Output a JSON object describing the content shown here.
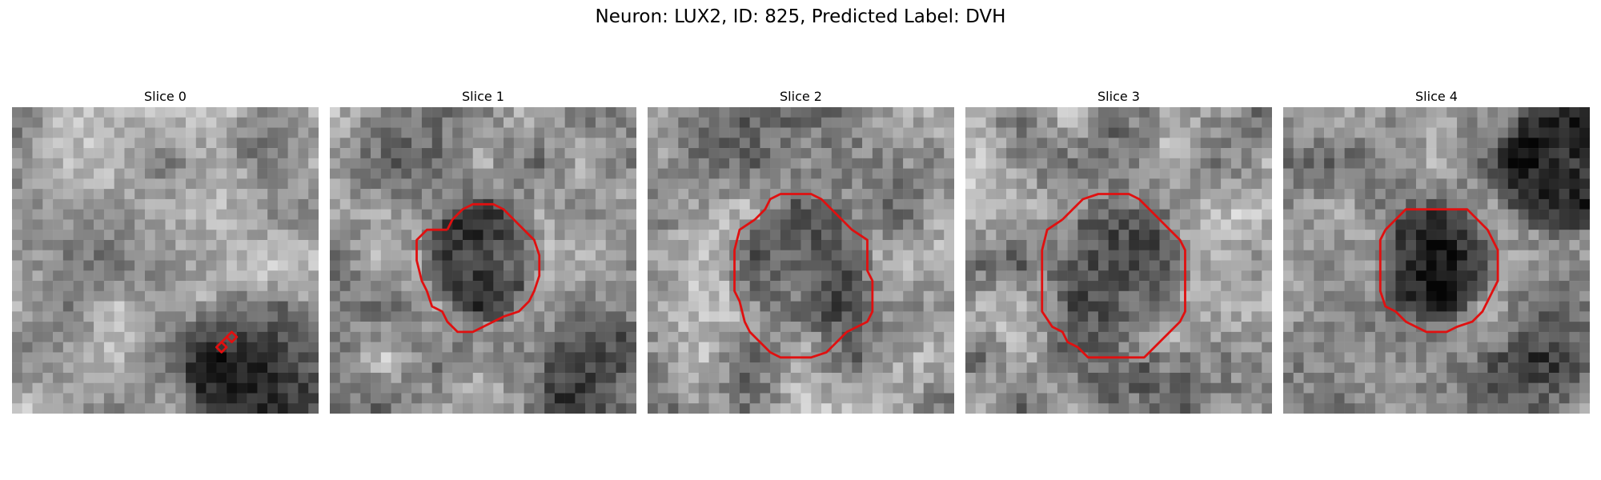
{
  "title": "Neuron: LUX2, ID: 825, Predicted Label: DVH",
  "contour_color": "#e01010",
  "panels": [
    {
      "title": "Slice 0",
      "seed": 11,
      "base": 0.62,
      "contrast": 0.22,
      "dark_regions": [
        {
          "cx": 24,
          "cy": 25,
          "r": 8.5,
          "strength": 0.35
        },
        {
          "cx": 26,
          "cy": 3,
          "r": 5,
          "strength": 0.18
        }
      ],
      "contour": [
        [
          20.0,
          23.5
        ],
        [
          20.5,
          23.0
        ],
        [
          21.0,
          23.5
        ],
        [
          20.5,
          24.0
        ],
        [
          20.0,
          23.5
        ],
        [
          21.0,
          22.5
        ],
        [
          21.5,
          22.0
        ],
        [
          22.0,
          22.5
        ],
        [
          21.5,
          23.0
        ],
        [
          21.0,
          22.5
        ]
      ]
    },
    {
      "title": "Slice 1",
      "seed": 23,
      "base": 0.58,
      "contrast": 0.25,
      "dark_regions": [
        {
          "cx": 15,
          "cy": 15,
          "r": 6.5,
          "strength": 0.3
        },
        {
          "cx": 27,
          "cy": 27,
          "r": 7,
          "strength": 0.22
        }
      ],
      "contour": [
        [
          11.5,
          12.0
        ],
        [
          12.0,
          11.0
        ],
        [
          13.0,
          10.0
        ],
        [
          14.0,
          9.5
        ],
        [
          16.0,
          9.5
        ],
        [
          17.0,
          10.0
        ],
        [
          18.0,
          11.0
        ],
        [
          19.0,
          12.0
        ],
        [
          20.0,
          13.0
        ],
        [
          20.5,
          14.5
        ],
        [
          20.5,
          16.5
        ],
        [
          20.0,
          18.0
        ],
        [
          19.5,
          19.0
        ],
        [
          18.5,
          20.0
        ],
        [
          17.0,
          20.5
        ],
        [
          15.0,
          21.5
        ],
        [
          14.0,
          22.0
        ],
        [
          12.5,
          22.0
        ],
        [
          11.5,
          21.0
        ],
        [
          11.0,
          20.0
        ],
        [
          10.0,
          19.5
        ],
        [
          9.5,
          18.0
        ],
        [
          9.0,
          17.0
        ],
        [
          8.5,
          15.0
        ],
        [
          8.5,
          13.0
        ],
        [
          9.5,
          12.0
        ],
        [
          11.5,
          12.0
        ]
      ]
    },
    {
      "title": "Slice 2",
      "seed": 37,
      "base": 0.55,
      "contrast": 0.26,
      "dark_regions": [
        {
          "cx": 15,
          "cy": 16,
          "r": 7.5,
          "strength": 0.26
        }
      ],
      "contour": [
        [
          10.5,
          11.0
        ],
        [
          11.5,
          10.0
        ],
        [
          12.0,
          9.0
        ],
        [
          13.0,
          8.5
        ],
        [
          16.0,
          8.5
        ],
        [
          17.0,
          9.0
        ],
        [
          18.0,
          10.0
        ],
        [
          19.0,
          11.0
        ],
        [
          20.0,
          12.0
        ],
        [
          21.5,
          13.0
        ],
        [
          21.5,
          16.0
        ],
        [
          22.0,
          17.0
        ],
        [
          22.0,
          20.0
        ],
        [
          21.5,
          21.0
        ],
        [
          20.5,
          21.5
        ],
        [
          19.5,
          22.0
        ],
        [
          18.5,
          23.0
        ],
        [
          17.5,
          24.0
        ],
        [
          16.0,
          24.5
        ],
        [
          13.0,
          24.5
        ],
        [
          12.0,
          24.0
        ],
        [
          11.0,
          23.0
        ],
        [
          10.0,
          22.0
        ],
        [
          9.5,
          21.0
        ],
        [
          9.0,
          19.0
        ],
        [
          8.5,
          18.0
        ],
        [
          8.5,
          14.0
        ],
        [
          9.0,
          12.0
        ],
        [
          10.5,
          11.0
        ]
      ]
    },
    {
      "title": "Slice 3",
      "seed": 51,
      "base": 0.57,
      "contrast": 0.27,
      "dark_regions": [
        {
          "cx": 15,
          "cy": 16,
          "r": 7.5,
          "strength": 0.24
        },
        {
          "cx": 20,
          "cy": 27,
          "r": 4,
          "strength": 0.18
        }
      ],
      "contour": [
        [
          9.5,
          11.0
        ],
        [
          10.5,
          10.0
        ],
        [
          11.5,
          9.0
        ],
        [
          13.0,
          8.5
        ],
        [
          16.0,
          8.5
        ],
        [
          17.0,
          9.0
        ],
        [
          18.0,
          10.0
        ],
        [
          19.0,
          11.0
        ],
        [
          20.0,
          12.0
        ],
        [
          21.0,
          13.0
        ],
        [
          21.5,
          14.0
        ],
        [
          21.5,
          20.0
        ],
        [
          21.0,
          21.0
        ],
        [
          20.0,
          22.0
        ],
        [
          19.0,
          23.0
        ],
        [
          18.0,
          24.0
        ],
        [
          17.5,
          24.5
        ],
        [
          12.0,
          24.5
        ],
        [
          11.0,
          23.5
        ],
        [
          10.0,
          23.0
        ],
        [
          9.5,
          22.0
        ],
        [
          8.5,
          21.5
        ],
        [
          7.5,
          20.0
        ],
        [
          7.5,
          14.0
        ],
        [
          8.0,
          12.0
        ],
        [
          9.5,
          11.0
        ]
      ]
    },
    {
      "title": "Slice 4",
      "seed": 64,
      "base": 0.54,
      "contrast": 0.24,
      "dark_regions": [
        {
          "cx": 15,
          "cy": 15,
          "r": 6.5,
          "strength": 0.32
        },
        {
          "cx": 27,
          "cy": 6,
          "r": 7,
          "strength": 0.3
        },
        {
          "cx": 24,
          "cy": 28,
          "r": 6,
          "strength": 0.18
        }
      ],
      "contour": [
        [
          10.0,
          12.0
        ],
        [
          11.0,
          11.0
        ],
        [
          12.0,
          10.0
        ],
        [
          18.0,
          10.0
        ],
        [
          19.0,
          11.0
        ],
        [
          20.0,
          12.0
        ],
        [
          20.5,
          13.0
        ],
        [
          21.0,
          14.0
        ],
        [
          21.0,
          17.0
        ],
        [
          20.5,
          18.0
        ],
        [
          20.0,
          19.0
        ],
        [
          19.5,
          20.0
        ],
        [
          18.5,
          21.0
        ],
        [
          17.0,
          21.5
        ],
        [
          16.0,
          22.0
        ],
        [
          14.0,
          22.0
        ],
        [
          13.0,
          21.5
        ],
        [
          12.0,
          21.0
        ],
        [
          11.0,
          20.0
        ],
        [
          10.0,
          19.5
        ],
        [
          9.5,
          18.0
        ],
        [
          9.5,
          16.0
        ],
        [
          9.5,
          13.0
        ],
        [
          10.0,
          12.0
        ]
      ]
    }
  ]
}
